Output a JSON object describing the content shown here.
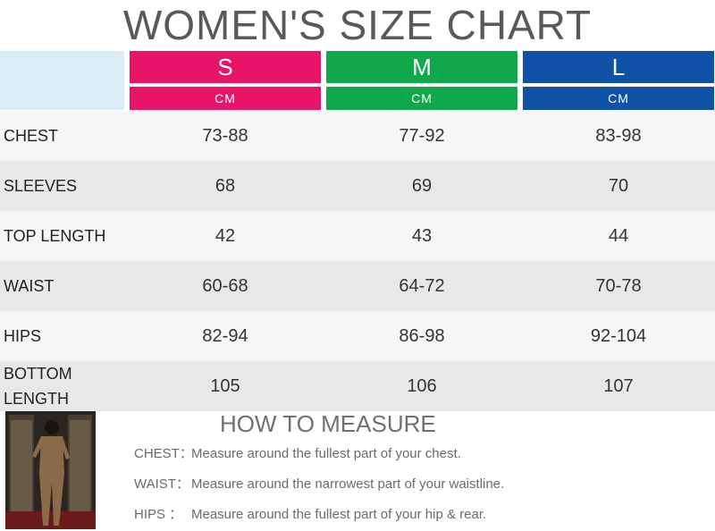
{
  "title": "WOMEN'S SIZE CHART",
  "sizes": [
    {
      "label": "S",
      "unit": "CM",
      "color": "#e8146a"
    },
    {
      "label": "M",
      "unit": "CM",
      "color": "#0fa84b"
    },
    {
      "label": "L",
      "unit": "CM",
      "color": "#0f52a8"
    }
  ],
  "rows": [
    {
      "label": "CHEST",
      "values": [
        "73-88",
        "77-92",
        "83-98"
      ]
    },
    {
      "label": "SLEEVES",
      "values": [
        "68",
        "69",
        "70"
      ]
    },
    {
      "label": "TOP LENGTH",
      "values": [
        "42",
        "43",
        "44"
      ]
    },
    {
      "label": "WAIST",
      "values": [
        "60-68",
        "64-72",
        "70-78"
      ]
    },
    {
      "label": "HIPS",
      "values": [
        "82-94",
        "86-98",
        "92-104"
      ]
    },
    {
      "label": "BOTTOM LENGTH",
      "values": [
        "105",
        "106",
        "107"
      ]
    }
  ],
  "how_to_measure": {
    "title": "HOW TO MEASURE",
    "items": [
      {
        "key": "CHEST：",
        "text": "Measure around the fullest part of your chest."
      },
      {
        "key": "WAIST：",
        "text": "Measure around the narrowest part of your waistline."
      },
      {
        "key": "HIPS  ：",
        "text": "Measure around the fullest part of your hip & rear."
      }
    ]
  }
}
